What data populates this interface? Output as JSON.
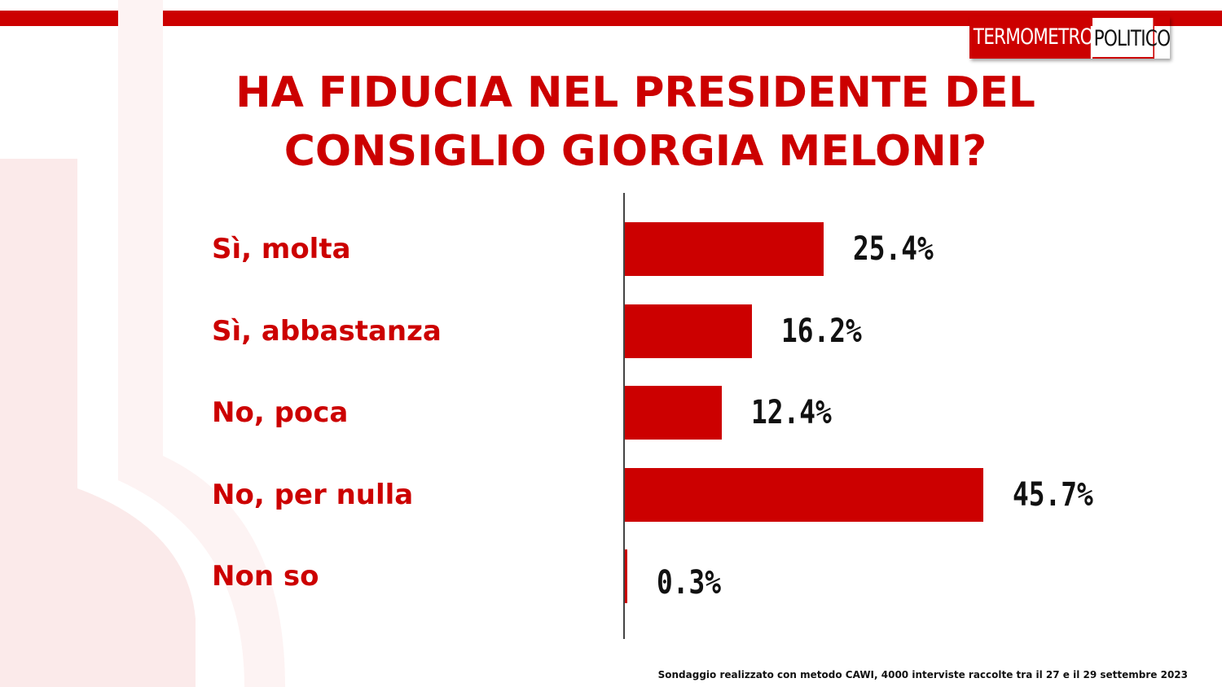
{
  "brand": {
    "logo_part1": "TERMOMETRO",
    "logo_part2": "POLITICO",
    "accent_color": "#cc0000"
  },
  "chart_data": {
    "type": "bar",
    "orientation": "horizontal",
    "title": "HA FIDUCIA NEL PRESIDENTE DEL CONSIGLIO GIORGIA MELONI?",
    "categories": [
      "Sì, molta",
      "Sì, abbastanza",
      "No, poca",
      "No, per nulla",
      "Non so"
    ],
    "values": [
      25.4,
      16.2,
      12.4,
      45.7,
      0.3
    ],
    "value_labels": [
      "25.4%",
      "16.2%",
      "12.4%",
      "45.7%",
      "0.3%"
    ],
    "unit": "%",
    "grid": false,
    "legend": "none",
    "bar_color": "#cc0000"
  },
  "footnote": "Sondaggio realizzato con metodo CAWI, 4000 interviste raccolte tra il 27 e il 29 settembre 2023"
}
